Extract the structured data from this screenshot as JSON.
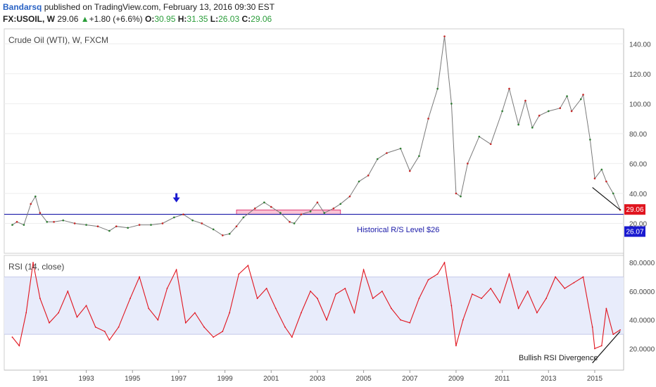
{
  "header": {
    "author": "Bandarsq",
    "published": "published on TradingView.com, February 13, 2016 09:30 EST"
  },
  "ohlc": {
    "symbol": "FX:USOIL, W",
    "last": "29.06",
    "change": "+1.80 (+6.6%)",
    "o_label": "O:",
    "o": "30.95",
    "h_label": "H:",
    "h": "31.35",
    "l_label": "L:",
    "l": "26.03",
    "c_label": "C:",
    "c": "29.06"
  },
  "colors": {
    "up": "#2a9d3a",
    "price_line": "#1a1aa8",
    "rsi_line": "#e0141e",
    "last_price_badge": "#e0141e",
    "level_badge": "#1a1ad0",
    "zone": "#f48fb1",
    "rsi_band": "#e8ecfb"
  },
  "chart_data": [
    {
      "type": "line",
      "title": "Crude Oil (WTI), W, FXCM",
      "ylim": [
        0,
        150
      ],
      "y_ticks": [
        "20.00",
        "40.00",
        "60.00",
        "80.00",
        "100.00",
        "120.00",
        "140.00"
      ],
      "x_ticks": [
        "1991",
        "1993",
        "1995",
        "1997",
        "1999",
        "2001",
        "2003",
        "2005",
        "2007",
        "2009",
        "2011",
        "2013",
        "2015"
      ],
      "series": [
        {
          "x": [
            1989.8,
            1990.0,
            1990.3,
            1990.6,
            1990.8,
            1991.0,
            1991.3,
            1991.6,
            1992.0,
            1992.5,
            1993.0,
            1993.5,
            1994.0,
            1994.3,
            1994.8,
            1995.3,
            1995.8,
            1996.3,
            1996.8,
            1997.2,
            1997.6,
            1998.0,
            1998.5,
            1998.9,
            1999.2,
            1999.5,
            1999.8,
            2000.3,
            2000.7,
            2001.0,
            2001.4,
            2001.8,
            2002.0,
            2002.3,
            2002.7,
            2003.0,
            2003.3,
            2003.7,
            2004.0,
            2004.4,
            2004.8,
            2005.2,
            2005.6,
            2006.0,
            2006.6,
            2007.0,
            2007.4,
            2007.8,
            2008.2,
            2008.5,
            2008.8,
            2009.0,
            2009.2,
            2009.5,
            2010.0,
            2010.5,
            2011.0,
            2011.3,
            2011.7,
            2012.0,
            2012.3,
            2012.6,
            2013.0,
            2013.5,
            2013.8,
            2014.0,
            2014.4,
            2014.5,
            2014.8,
            2015.0,
            2015.3,
            2015.5,
            2015.8,
            2016.1
          ],
          "y": [
            19,
            21,
            19,
            33,
            38,
            27,
            21,
            21,
            22,
            20,
            19,
            18,
            15,
            18,
            17,
            19,
            19,
            20,
            24,
            26,
            22,
            20,
            16,
            12,
            13,
            18,
            24,
            30,
            34,
            31,
            27,
            21,
            20,
            26,
            28,
            34,
            27,
            30,
            33,
            38,
            48,
            52,
            63,
            67,
            70,
            55,
            65,
            90,
            110,
            145,
            100,
            40,
            38,
            60,
            78,
            73,
            95,
            110,
            86,
            102,
            84,
            92,
            95,
            97,
            105,
            95,
            103,
            106,
            76,
            50,
            56,
            48,
            40,
            29.06
          ]
        }
      ],
      "annotations": [
        "Historical R/S Level $26"
      ],
      "last_price_label": "29.06",
      "level_label": "26.07",
      "level_value": 26.07,
      "zone_value_range": [
        26,
        29
      ],
      "zone_x_range": [
        1999.5,
        2004.0
      ],
      "marker_arrow_x": 1996.9,
      "marker_arrow_y": 35,
      "trendline_x": [
        2014.9,
        2016.1
      ],
      "trendline_y": [
        44,
        29
      ]
    },
    {
      "type": "line",
      "title": "RSI (14, close)",
      "ylim": [
        5,
        85
      ],
      "y_ticks": [
        "20.0000",
        "40.0000",
        "60.0000",
        "80.0000"
      ],
      "band": [
        30,
        70
      ],
      "series": [
        {
          "x": [
            1989.8,
            1990.1,
            1990.4,
            1990.7,
            1991.0,
            1991.4,
            1991.8,
            1992.2,
            1992.6,
            1993.0,
            1993.4,
            1993.8,
            1994.0,
            1994.4,
            1994.9,
            1995.3,
            1995.7,
            1996.1,
            1996.5,
            1996.9,
            1997.3,
            1997.7,
            1998.1,
            1998.5,
            1998.9,
            1999.2,
            1999.6,
            2000.0,
            2000.4,
            2000.8,
            2001.2,
            2001.6,
            2001.9,
            2002.3,
            2002.7,
            2003.0,
            2003.4,
            2003.8,
            2004.2,
            2004.6,
            2005.0,
            2005.4,
            2005.8,
            2006.2,
            2006.6,
            2007.0,
            2007.4,
            2007.8,
            2008.2,
            2008.5,
            2008.8,
            2009.0,
            2009.3,
            2009.7,
            2010.1,
            2010.5,
            2010.9,
            2011.3,
            2011.7,
            2012.1,
            2012.5,
            2012.9,
            2013.3,
            2013.7,
            2014.1,
            2014.5,
            2014.9,
            2015.0,
            2015.3,
            2015.5,
            2015.8,
            2016.1
          ],
          "y": [
            28,
            22,
            45,
            80,
            55,
            38,
            45,
            60,
            42,
            50,
            35,
            32,
            26,
            35,
            55,
            70,
            48,
            40,
            62,
            75,
            38,
            45,
            35,
            28,
            32,
            45,
            72,
            78,
            55,
            62,
            48,
            35,
            28,
            45,
            60,
            55,
            40,
            58,
            62,
            45,
            75,
            55,
            60,
            48,
            40,
            38,
            55,
            68,
            72,
            80,
            50,
            22,
            40,
            58,
            55,
            62,
            52,
            72,
            48,
            60,
            45,
            55,
            70,
            62,
            66,
            70,
            35,
            20,
            22,
            48,
            30,
            33
          ]
        }
      ],
      "annotations": [
        "Bullish RSI Divergence"
      ],
      "trendline_x": [
        2014.9,
        2016.1
      ],
      "trendline_y": [
        10,
        32
      ]
    }
  ]
}
